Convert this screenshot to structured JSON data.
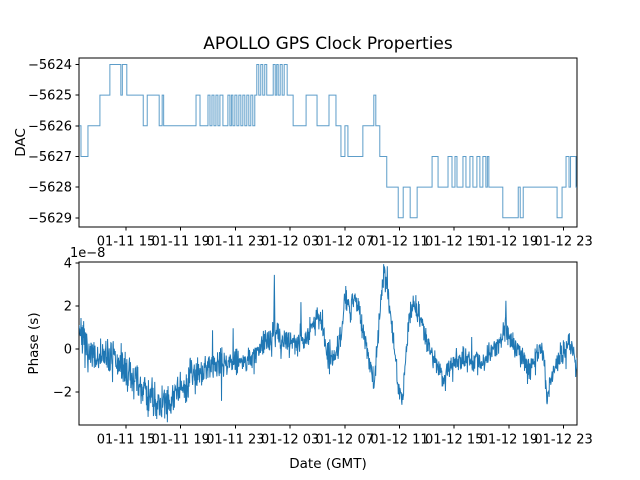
{
  "chart_data": [
    {
      "type": "step",
      "title": "APOLLO GPS Clock Properties",
      "ylabel": "DAC",
      "ylim": [
        -5629.3,
        -5623.79
      ],
      "line_color": "#1f77b4",
      "yticks": {
        "values": [
          -5624,
          -5625,
          -5626,
          -5627,
          -5628,
          -5629
        ],
        "labels": [
          "−5624",
          "−5625",
          "−5626",
          "−5627",
          "−5628",
          "−5629"
        ]
      },
      "xticks": {
        "fractions": [
          0.0944,
          0.2042,
          0.314,
          0.4239,
          0.5337,
          0.6435,
          0.7534,
          0.8632,
          0.973
        ],
        "labels": [
          "01-11 15",
          "01-11 19",
          "01-11 23",
          "01-12 03",
          "01-12 07",
          "01-12 11",
          "01-12 15",
          "01-12 19",
          "01-12 23"
        ]
      },
      "steps": [
        [
          0.0,
          -5626
        ],
        [
          0.004,
          -5627
        ],
        [
          0.018,
          -5626
        ],
        [
          0.042,
          -5625
        ],
        [
          0.062,
          -5624
        ],
        [
          0.084,
          -5625
        ],
        [
          0.087,
          -5624
        ],
        [
          0.096,
          -5625
        ],
        [
          0.129,
          -5626
        ],
        [
          0.137,
          -5625
        ],
        [
          0.161,
          -5626
        ],
        [
          0.167,
          -5625
        ],
        [
          0.17,
          -5626
        ],
        [
          0.235,
          -5625
        ],
        [
          0.243,
          -5626
        ],
        [
          0.259,
          -5625
        ],
        [
          0.263,
          -5626
        ],
        [
          0.267,
          -5625
        ],
        [
          0.271,
          -5626
        ],
        [
          0.275,
          -5625
        ],
        [
          0.279,
          -5626
        ],
        [
          0.283,
          -5625
        ],
        [
          0.289,
          -5626
        ],
        [
          0.299,
          -5625
        ],
        [
          0.303,
          -5626
        ],
        [
          0.306,
          -5625
        ],
        [
          0.309,
          -5626
        ],
        [
          0.313,
          -5625
        ],
        [
          0.317,
          -5626
        ],
        [
          0.321,
          -5625
        ],
        [
          0.325,
          -5626
        ],
        [
          0.329,
          -5625
        ],
        [
          0.333,
          -5626
        ],
        [
          0.337,
          -5625
        ],
        [
          0.341,
          -5626
        ],
        [
          0.345,
          -5625
        ],
        [
          0.349,
          -5626
        ],
        [
          0.353,
          -5625
        ],
        [
          0.357,
          -5624
        ],
        [
          0.361,
          -5625
        ],
        [
          0.365,
          -5624
        ],
        [
          0.369,
          -5625
        ],
        [
          0.373,
          -5624
        ],
        [
          0.377,
          -5625
        ],
        [
          0.39,
          -5624
        ],
        [
          0.394,
          -5625
        ],
        [
          0.397,
          -5624
        ],
        [
          0.4,
          -5625
        ],
        [
          0.404,
          -5624
        ],
        [
          0.408,
          -5625
        ],
        [
          0.412,
          -5624
        ],
        [
          0.418,
          -5625
        ],
        [
          0.43,
          -5626
        ],
        [
          0.456,
          -5625
        ],
        [
          0.478,
          -5626
        ],
        [
          0.502,
          -5625
        ],
        [
          0.516,
          -5626
        ],
        [
          0.526,
          -5627
        ],
        [
          0.534,
          -5626
        ],
        [
          0.54,
          -5627
        ],
        [
          0.57,
          -5626
        ],
        [
          0.592,
          -5625
        ],
        [
          0.596,
          -5626
        ],
        [
          0.604,
          -5627
        ],
        [
          0.618,
          -5628
        ],
        [
          0.641,
          -5629
        ],
        [
          0.651,
          -5628
        ],
        [
          0.665,
          -5629
        ],
        [
          0.679,
          -5628
        ],
        [
          0.709,
          -5627
        ],
        [
          0.721,
          -5628
        ],
        [
          0.741,
          -5627
        ],
        [
          0.749,
          -5628
        ],
        [
          0.755,
          -5627
        ],
        [
          0.759,
          -5628
        ],
        [
          0.771,
          -5627
        ],
        [
          0.777,
          -5628
        ],
        [
          0.785,
          -5627
        ],
        [
          0.791,
          -5628
        ],
        [
          0.799,
          -5627
        ],
        [
          0.805,
          -5628
        ],
        [
          0.811,
          -5627
        ],
        [
          0.817,
          -5628
        ],
        [
          0.82,
          -5627
        ],
        [
          0.823,
          -5628
        ],
        [
          0.851,
          -5629
        ],
        [
          0.882,
          -5628
        ],
        [
          0.886,
          -5629
        ],
        [
          0.892,
          -5628
        ],
        [
          0.96,
          -5629
        ],
        [
          0.97,
          -5628
        ],
        [
          0.978,
          -5627
        ],
        [
          0.984,
          -5628
        ],
        [
          0.987,
          -5627
        ],
        [
          0.998,
          -5628
        ]
      ]
    },
    {
      "type": "line",
      "ylabel": "Phase (s)",
      "xlabel": "Date (GMT)",
      "offset_text": "1e−8",
      "ylim": [
        -3.53,
        4.05
      ],
      "line_color": "#1f77b4",
      "yticks": {
        "values": [
          4,
          2,
          0,
          -2
        ],
        "labels": [
          "4",
          "2",
          "0",
          "−2"
        ]
      },
      "xticks": {
        "fractions": [
          0.0944,
          0.2042,
          0.314,
          0.4239,
          0.5337,
          0.6435,
          0.7534,
          0.8632,
          0.973
        ],
        "labels": [
          "01-11 15",
          "01-11 19",
          "01-11 23",
          "01-12 03",
          "01-12 07",
          "01-12 11",
          "01-12 15",
          "01-12 19",
          "01-12 23"
        ]
      },
      "trend": [
        [
          0.0,
          1.3
        ],
        [
          0.008,
          0.4
        ],
        [
          0.02,
          -0.35
        ],
        [
          0.05,
          -0.4
        ],
        [
          0.08,
          -0.7
        ],
        [
          0.1,
          -1.1
        ],
        [
          0.125,
          -1.9
        ],
        [
          0.15,
          -2.3
        ],
        [
          0.175,
          -2.5
        ],
        [
          0.2,
          -1.9
        ],
        [
          0.225,
          -1.3
        ],
        [
          0.25,
          -0.9
        ],
        [
          0.28,
          -0.75
        ],
        [
          0.31,
          -0.5
        ],
        [
          0.33,
          -0.55
        ],
        [
          0.355,
          -0.3
        ],
        [
          0.375,
          0.45
        ],
        [
          0.392,
          0.7
        ],
        [
          0.41,
          0.45
        ],
        [
          0.43,
          0.35
        ],
        [
          0.455,
          0.4
        ],
        [
          0.468,
          1.1
        ],
        [
          0.478,
          1.6
        ],
        [
          0.488,
          1.2
        ],
        [
          0.5,
          -0.2
        ],
        [
          0.515,
          -0.55
        ],
        [
          0.528,
          1.2
        ],
        [
          0.535,
          2.3
        ],
        [
          0.545,
          1.8
        ],
        [
          0.553,
          2.5
        ],
        [
          0.562,
          1.9
        ],
        [
          0.575,
          0.3
        ],
        [
          0.592,
          -1.6
        ],
        [
          0.6,
          0.5
        ],
        [
          0.608,
          3.0
        ],
        [
          0.613,
          3.6
        ],
        [
          0.62,
          2.6
        ],
        [
          0.63,
          0.8
        ],
        [
          0.643,
          -2.0
        ],
        [
          0.65,
          -2.2
        ],
        [
          0.663,
          1.5
        ],
        [
          0.672,
          2.1
        ],
        [
          0.683,
          1.6
        ],
        [
          0.703,
          0.0
        ],
        [
          0.715,
          -0.5
        ],
        [
          0.733,
          -1.5
        ],
        [
          0.75,
          -0.6
        ],
        [
          0.77,
          -0.4
        ],
        [
          0.79,
          -0.5
        ],
        [
          0.81,
          -0.7
        ],
        [
          0.825,
          -0.2
        ],
        [
          0.84,
          0.3
        ],
        [
          0.857,
          0.9
        ],
        [
          0.87,
          0.2
        ],
        [
          0.885,
          -0.1
        ],
        [
          0.904,
          -1.1
        ],
        [
          0.92,
          -0.2
        ],
        [
          0.93,
          0.1
        ],
        [
          0.94,
          -2.3
        ],
        [
          0.95,
          -1.2
        ],
        [
          0.965,
          -0.4
        ],
        [
          0.984,
          0.5
        ],
        [
          1.0,
          -0.9
        ]
      ],
      "spikes": [
        [
          0.165,
          -3.1
        ],
        [
          0.185,
          -3.0
        ],
        [
          0.3925,
          3.45
        ],
        [
          0.613,
          3.85
        ],
        [
          0.648,
          -2.45
        ],
        [
          0.857,
          2.25
        ],
        [
          0.94,
          -2.56
        ]
      ],
      "noise": {
        "seed": 7,
        "amp_early": 0.42,
        "amp_mid": 0.32,
        "amp_late": 0.28,
        "early_until": 0.25,
        "mid_until": 0.55,
        "spike_prob": 0.008,
        "samples": 1500
      }
    }
  ]
}
